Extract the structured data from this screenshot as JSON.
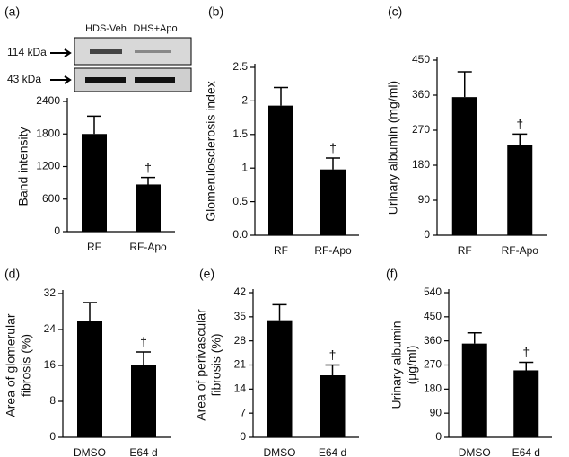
{
  "chart_data": [
    {
      "type": "bar",
      "panel_label": "(a)",
      "y_label": [
        "Band intensity"
      ],
      "categories": [
        "RF",
        "RF-Apo"
      ],
      "values": [
        1800,
        870
      ],
      "errors": [
        330,
        130
      ],
      "significance": [
        null,
        "†"
      ],
      "color": "#000000",
      "ylim": [
        0,
        2400
      ],
      "yticks": [
        0,
        600,
        1200,
        1800,
        2400
      ],
      "blot": {
        "lanes": [
          "HDS-Veh",
          "DHS+Apo"
        ],
        "markers": [
          "114 kDa",
          "43 kDa"
        ]
      }
    },
    {
      "type": "bar",
      "panel_label": "(b)",
      "y_label": [
        "Glomerulosclerosis index"
      ],
      "categories": [
        "RF",
        "RF-Apo"
      ],
      "values": [
        1.93,
        0.98
      ],
      "errors": [
        0.27,
        0.17
      ],
      "significance": [
        null,
        "†"
      ],
      "color": "#000000",
      "ylim": [
        0,
        2.5
      ],
      "yticks": [
        {
          "value": 0,
          "label": "0.0"
        },
        0.5,
        1,
        1.5,
        2,
        2.5
      ]
    },
    {
      "type": "bar",
      "panel_label": "(c)",
      "y_label": [
        "Urinary albumin (mg/ml)"
      ],
      "categories": [
        "RF",
        "RF-Apo"
      ],
      "values": [
        355,
        232
      ],
      "errors": [
        65,
        28
      ],
      "significance": [
        null,
        "†"
      ],
      "color": "#000000",
      "ylim": [
        0,
        450
      ],
      "yticks": [
        0,
        90,
        180,
        270,
        360,
        450
      ]
    },
    {
      "type": "bar",
      "panel_label": "(d)",
      "y_label": [
        "Area of glomerular",
        "fibrosis (%)"
      ],
      "categories": [
        "DMSO",
        "E64 d"
      ],
      "values": [
        26,
        16.2
      ],
      "errors": [
        4,
        2.8
      ],
      "significance": [
        null,
        "†"
      ],
      "color": "#000000",
      "ylim": [
        0,
        32
      ],
      "yticks": [
        0,
        8,
        16,
        24,
        32
      ]
    },
    {
      "type": "bar",
      "panel_label": "(e)",
      "y_label": [
        "Area of perivascular",
        "fibrosis (%)"
      ],
      "categories": [
        "DMSO",
        "E64 d"
      ],
      "values": [
        34,
        18
      ],
      "errors": [
        4.5,
        3
      ],
      "significance": [
        null,
        "†"
      ],
      "color": "#000000",
      "ylim": [
        0,
        42
      ],
      "yticks": [
        0,
        7,
        14,
        21,
        28,
        35,
        42
      ]
    },
    {
      "type": "bar",
      "panel_label": "(f)",
      "y_label": [
        "Urinary albumin",
        "(μg/ml)"
      ],
      "categories": [
        "DMSO",
        "E64 d"
      ],
      "values": [
        350,
        250
      ],
      "errors": [
        40,
        30
      ],
      "significance": [
        null,
        "†"
      ],
      "color": "#000000",
      "ylim": [
        0,
        540
      ],
      "yticks": [
        0,
        90,
        180,
        270,
        360,
        450,
        540
      ]
    }
  ]
}
